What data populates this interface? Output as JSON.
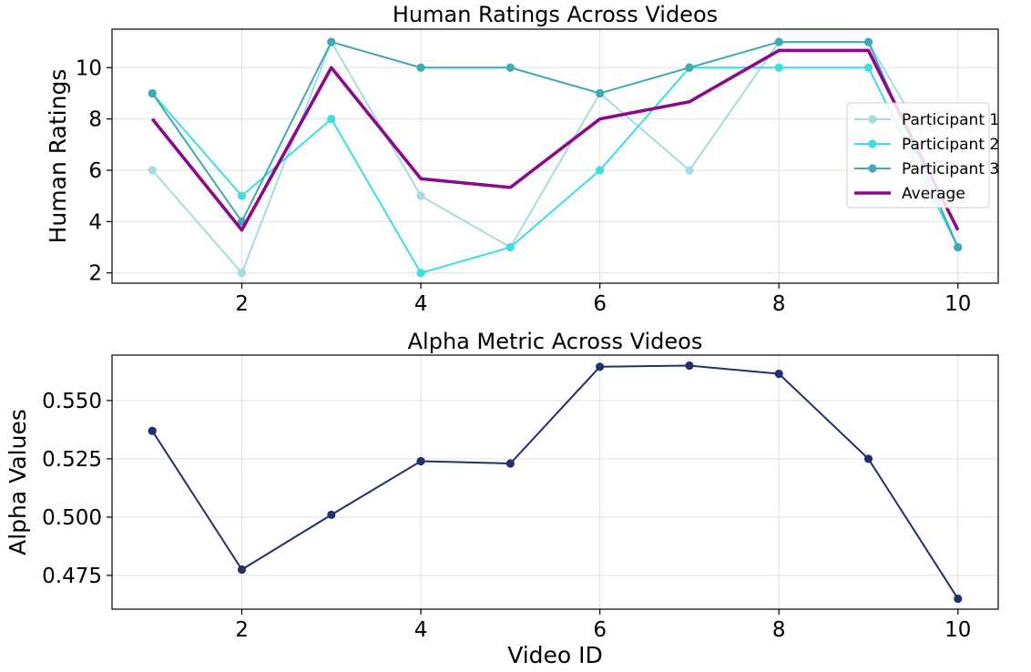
{
  "chart_data": [
    {
      "type": "line",
      "title": "Human Ratings Across Videos",
      "xlabel": "",
      "ylabel": "Human Ratings",
      "xlim": [
        0.55,
        10.45
      ],
      "ylim": [
        1.6,
        11.5
      ],
      "xticks": [
        2,
        4,
        6,
        8,
        10
      ],
      "yticks": [
        2,
        4,
        6,
        8,
        10
      ],
      "grid": true,
      "legend_position": "center-right",
      "x": [
        1,
        2,
        3,
        4,
        5,
        6,
        7,
        8,
        9,
        10
      ],
      "series": [
        {
          "name": "Participant 1",
          "color": "#a6dce0",
          "marker": true,
          "values": [
            6,
            2,
            11,
            5,
            3,
            9,
            6,
            11,
            11,
            5
          ]
        },
        {
          "name": "Participant 2",
          "color": "#3fdde0",
          "marker": true,
          "values": [
            9,
            5,
            8,
            2,
            3,
            6,
            10,
            10,
            10,
            3
          ]
        },
        {
          "name": "Participant 3",
          "color": "#41a9b4",
          "marker": true,
          "values": [
            9,
            4,
            11,
            10,
            10,
            9,
            10,
            11,
            11,
            3
          ]
        },
        {
          "name": "Average",
          "color": "#8b0a8b",
          "marker": false,
          "values": [
            8,
            3.67,
            10,
            5.67,
            5.33,
            8,
            8.67,
            10.67,
            10.67,
            3.67
          ]
        }
      ]
    },
    {
      "type": "line",
      "title": "Alpha Metric Across Videos",
      "xlabel": "Video ID",
      "ylabel": "Alpha Values",
      "xlim": [
        0.55,
        10.45
      ],
      "ylim": [
        0.4605,
        0.5695
      ],
      "xticks": [
        2,
        4,
        6,
        8,
        10
      ],
      "yticks": [
        0.475,
        0.5,
        0.525,
        0.55
      ],
      "ytick_labels": [
        "0.475",
        "0.500",
        "0.525",
        "0.550"
      ],
      "grid": true,
      "x": [
        1,
        2,
        3,
        4,
        5,
        6,
        7,
        8,
        9,
        10
      ],
      "series": [
        {
          "name": "",
          "color": "#22306e",
          "marker": true,
          "values": [
            0.537,
            0.4775,
            0.501,
            0.524,
            0.523,
            0.5645,
            0.565,
            0.5615,
            0.525,
            0.465
          ]
        }
      ]
    }
  ]
}
